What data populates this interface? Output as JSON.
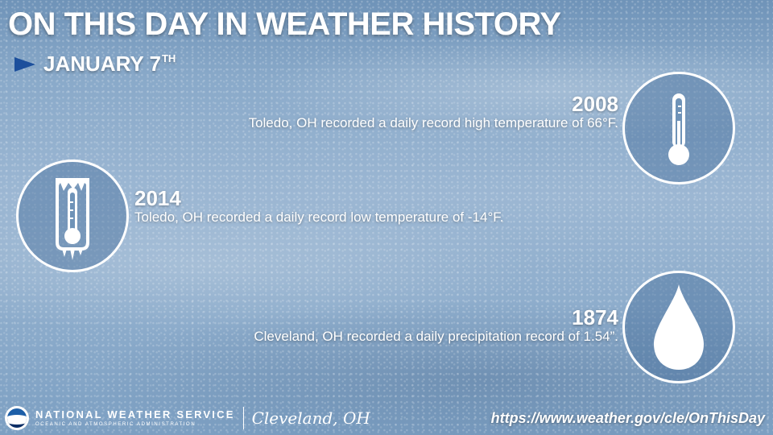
{
  "header": {
    "title": "ON THIS DAY IN WEATHER HISTORY",
    "date": "JANUARY 7",
    "date_suffix": "TH"
  },
  "events": [
    {
      "year": "2008",
      "description": "Toledo, OH recorded a daily record high temperature of 66°F.",
      "icon": "thermometer-icon"
    },
    {
      "year": "2014",
      "description": "Toledo, OH recorded a daily record low temperature of -14°F.",
      "icon": "frozen-thermometer-icon"
    },
    {
      "year": "1874",
      "description": "Cleveland, OH recorded a daily precipitation record of 1.54”.",
      "icon": "raindrop-icon"
    }
  ],
  "footer": {
    "agency_name": "NATIONAL WEATHER SERVICE",
    "agency_sub": "OCEANIC AND ATMOSPHERIC ADMINISTRATION",
    "office": "Cleveland, OH",
    "url": "https://www.weather.gov/cle/OnThisDay"
  },
  "colors": {
    "arrow": "#1c4f9c",
    "text": "#ffffff",
    "background": "#8eadcc"
  }
}
